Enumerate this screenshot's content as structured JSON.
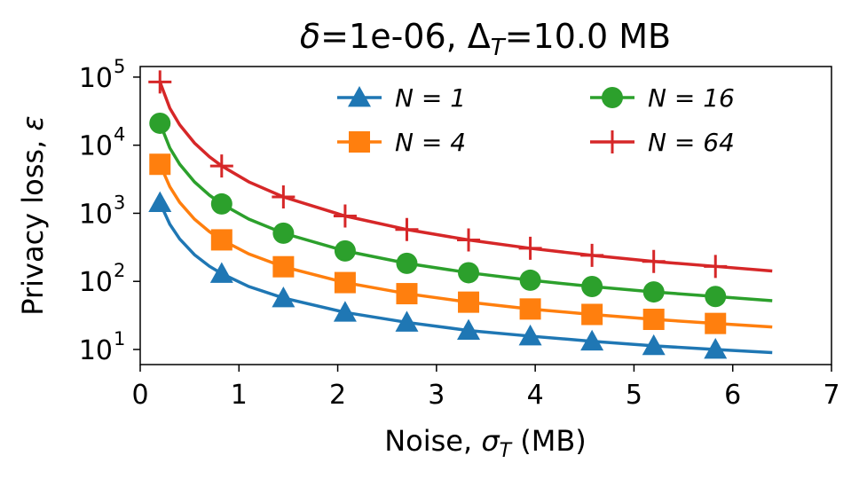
{
  "chart_data": {
    "type": "line",
    "title": [
      "δ",
      "=1e-06, Δ",
      "T",
      "=10.0 MB"
    ],
    "xlabel": [
      "Noise, ",
      "σ",
      "T",
      " (MB)"
    ],
    "ylabel": [
      "Privacy loss, ",
      "ε"
    ],
    "log_y": true,
    "xlim": [
      0,
      7
    ],
    "xticks": [
      0,
      1,
      2,
      3,
      4,
      5,
      6,
      7
    ],
    "ylim": [
      6,
      143000
    ],
    "yticks": [
      {
        "value": 10,
        "label": "10",
        "exponent": "1"
      },
      {
        "value": 100,
        "label": "10",
        "exponent": "2"
      },
      {
        "value": 1000,
        "label": "10",
        "exponent": "3"
      },
      {
        "value": 10000,
        "label": "10",
        "exponent": "4"
      },
      {
        "value": 100000,
        "label": "10",
        "exponent": "5"
      }
    ],
    "x": [
      0.2,
      0.3,
      0.4,
      0.55,
      0.7,
      0.825,
      1.1,
      1.45,
      2.075,
      2.7,
      3.325,
      3.95,
      4.575,
      5.2,
      5.825,
      6.4
    ],
    "marker_indices": [
      0,
      5,
      7,
      8,
      9,
      10,
      11,
      12,
      13,
      14
    ],
    "series": [
      {
        "name": "N = 1",
        "color": "#1f77b4",
        "marker": "triangle",
        "values": [
          1425,
          689,
          419,
          246,
          167,
          130,
          84,
          57,
          35,
          25,
          19,
          15.7,
          13.2,
          11.3,
          10,
          9
        ]
      },
      {
        "name": "N = 4",
        "color": "#ff7f0e",
        "marker": "square",
        "values": [
          5240,
          2449,
          1445,
          818,
          538,
          407,
          253,
          164,
          96,
          66,
          49.5,
          39.3,
          32.7,
          27.7,
          24.1,
          21.4
        ]
      },
      {
        "name": "N = 16",
        "color": "#2ca02c",
        "marker": "circle",
        "values": [
          21000,
          9088,
          5250,
          2886,
          1849,
          1372,
          821,
          510,
          280,
          184,
          134,
          104,
          84,
          70,
          60,
          52
        ]
      },
      {
        "name": "N = 64",
        "color": "#d62728",
        "marker": "plus",
        "values": [
          85000,
          34902,
          19913,
          10753,
          6775,
          4958,
          2890,
          1739,
          912,
          577,
          406,
          306,
          241,
          196,
          166,
          142
        ]
      }
    ],
    "legend": "upper right"
  }
}
